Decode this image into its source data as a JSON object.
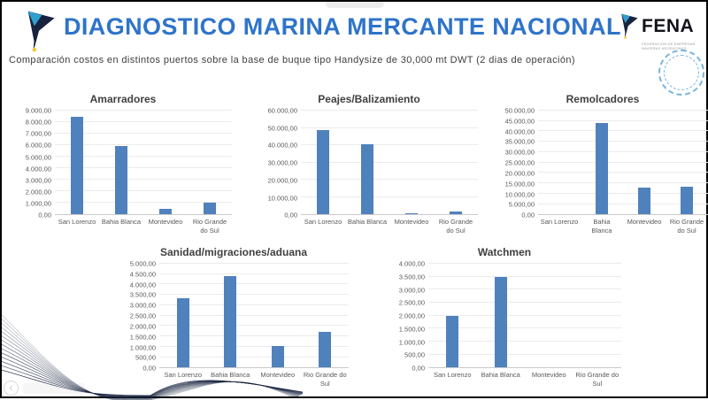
{
  "header": {
    "title": "DIAGNOSTICO MARINA MERCANTE NACIONAL",
    "subtitle": "Comparación costos en distintos puertos sobre la base de buque tipo Handysize de 30,000 mt DWT (2 dias de operación)"
  },
  "fena": {
    "wordmark": "FENA",
    "tagline_line1": "FEDERACION DE EMPRESAS",
    "tagline_line2": "NAVIERAS ARGENTINAS"
  },
  "colors": {
    "title_blue": "#2e74c9",
    "bar_blue": "#4f81bd",
    "logo_navy": "#17233f",
    "logo_lightblue": "#2f9fd0",
    "logo_yellow": "#f4c63a",
    "seal_blue": "#7ab6dc"
  },
  "ghost_controls": {
    "back_glyph": "‹"
  },
  "chart_data": [
    {
      "type": "bar",
      "title": "Amarradores",
      "categories": [
        "San Lorenzo",
        "Bahia Blanca",
        "Montevideo",
        "Rio Grande do Sul"
      ],
      "values": [
        8450,
        5900,
        450,
        1000
      ],
      "xlabel": "",
      "ylabel": "",
      "ylim": [
        0,
        9000
      ],
      "ytick_step": 1000,
      "grid": true,
      "legend": "none",
      "tick_labels": [
        "0,00",
        "1.000,00",
        "2.000,00",
        "3.000,00",
        "4.000,00",
        "5.000,00",
        "6.000,00",
        "7.000,00",
        "8.000,00",
        "9.000,00"
      ]
    },
    {
      "type": "bar",
      "title": "Peajes/Balizamiento",
      "categories": [
        "San Lorenzo",
        "Bahia Blanca",
        "Montevideo",
        "Rio Grande do Sul"
      ],
      "values": [
        48500,
        40500,
        900,
        1800
      ],
      "xlabel": "",
      "ylabel": "",
      "ylim": [
        0,
        60000
      ],
      "ytick_step": 10000,
      "grid": true,
      "legend": "none",
      "tick_labels": [
        "0,00",
        "10.000,00",
        "20.000,00",
        "30.000,00",
        "40.000,00",
        "50.000,00",
        "60.000,00"
      ]
    },
    {
      "type": "bar",
      "title": "Remolcadores",
      "categories": [
        "San Lorenzo",
        "Bahia Blanca",
        "Montevideo",
        "Rio Grande do Sul"
      ],
      "values": [
        0,
        44000,
        13000,
        13500
      ],
      "xlabel": "",
      "ylabel": "",
      "ylim": [
        0,
        50000
      ],
      "ytick_step": 5000,
      "grid": true,
      "legend": "none",
      "tick_labels": [
        "0,00",
        "5.000,00",
        "10.000,00",
        "15.000,00",
        "20.000,00",
        "25.000,00",
        "30.000,00",
        "35.000,00",
        "40.000,00",
        "45.000,00",
        "50.000,00"
      ]
    },
    {
      "type": "bar",
      "title": "Sanidad/migraciones/aduana",
      "categories": [
        "San Lorenzo",
        "Bahia Blanca",
        "Montevideo",
        "Rio Grande do Sul"
      ],
      "values": [
        3350,
        4400,
        1050,
        1700
      ],
      "xlabel": "",
      "ylabel": "",
      "ylim": [
        0,
        5000
      ],
      "ytick_step": 500,
      "grid": true,
      "legend": "none",
      "tick_labels": [
        "0,00",
        "500,00",
        "1.000,00",
        "1.500,00",
        "2.000,00",
        "2.500,00",
        "3.000,00",
        "3.500,00",
        "4.000,00",
        "4.500,00",
        "5.000,00"
      ]
    },
    {
      "type": "bar",
      "title": "Watchmen",
      "categories": [
        "San Lorenzo",
        "Bahia Blanca",
        "Montevideo",
        "Rio Grande do Sul"
      ],
      "values": [
        2000,
        3500,
        0,
        0
      ],
      "xlabel": "",
      "ylabel": "",
      "ylim": [
        0,
        4000
      ],
      "ytick_step": 500,
      "grid": true,
      "legend": "none",
      "tick_labels": [
        "0,00",
        "500,00",
        "1.000,00",
        "1.500,00",
        "2.000,00",
        "2.500,00",
        "3.000,00",
        "3.500,00",
        "4.000,00"
      ]
    }
  ]
}
